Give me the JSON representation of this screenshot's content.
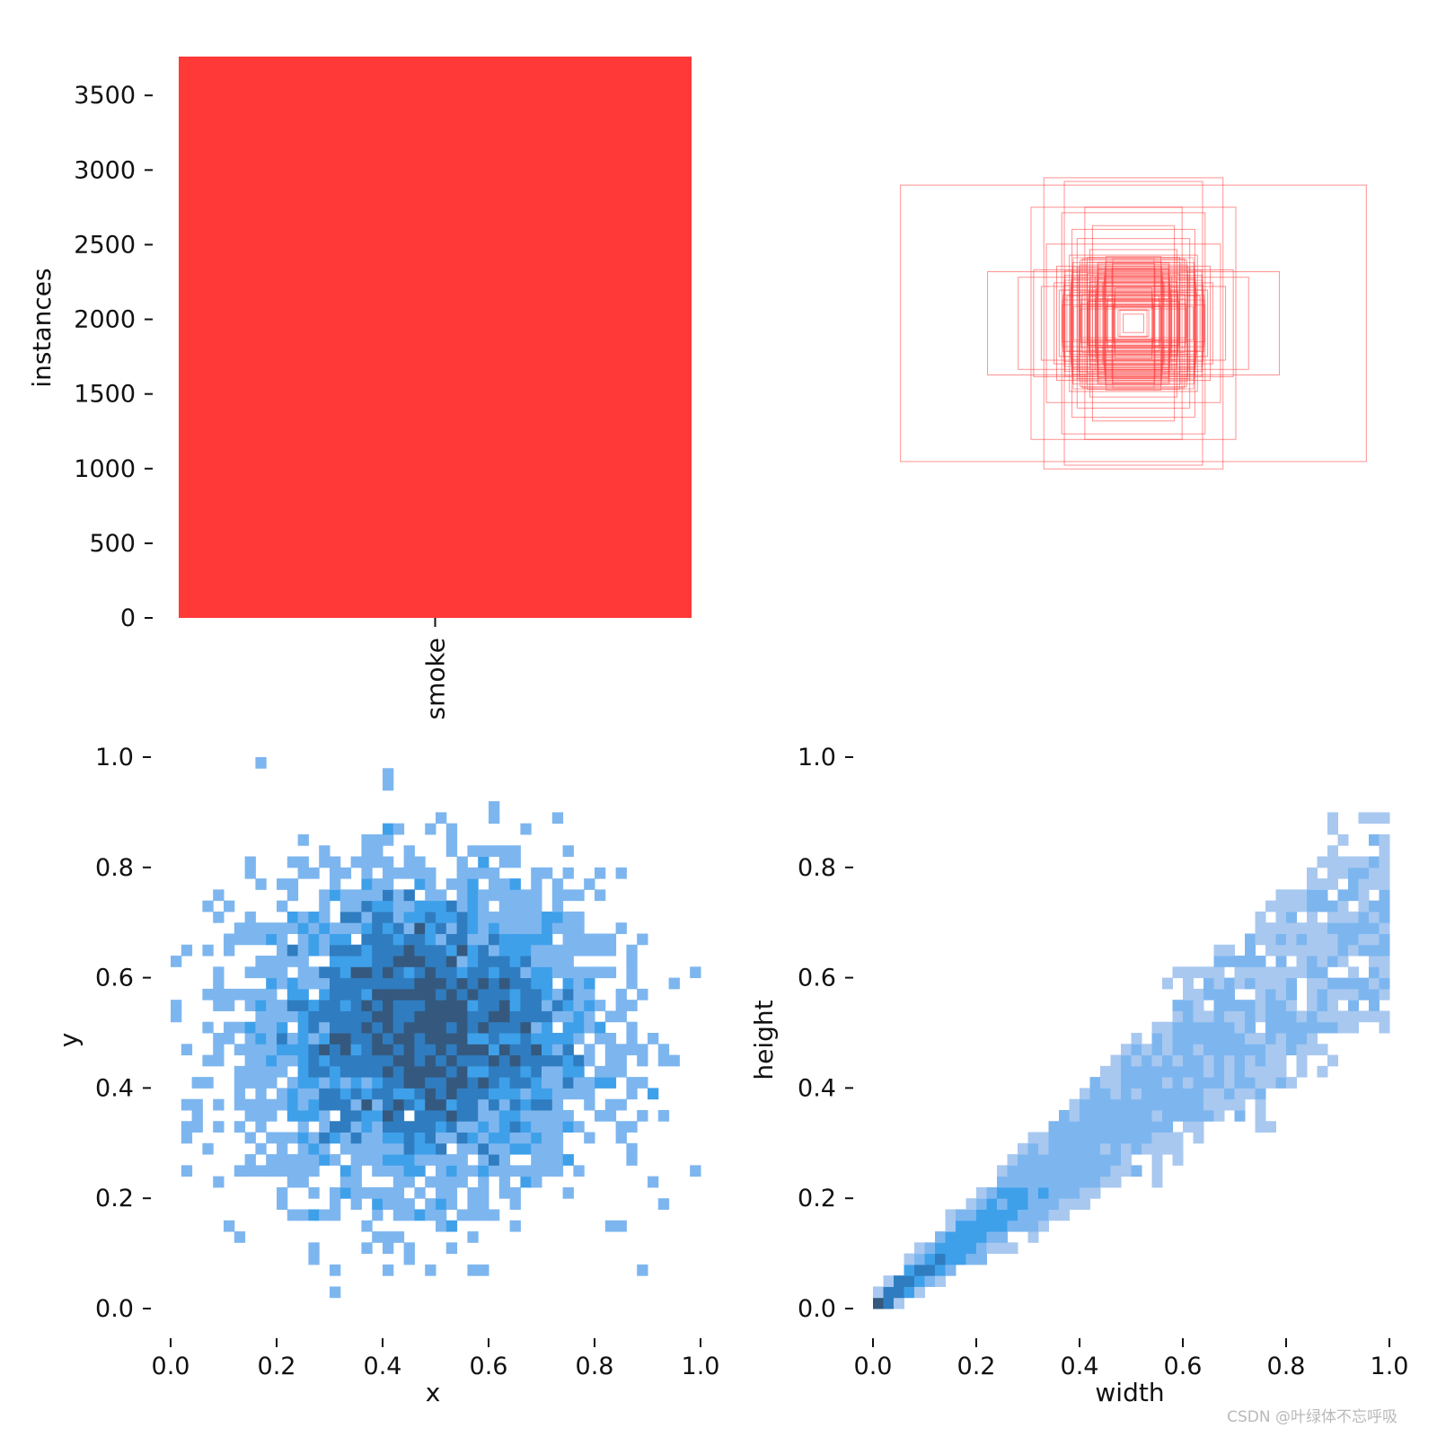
{
  "colors": {
    "bar": "#ff3838",
    "box": "#ff3838",
    "hist_levels": [
      "#a8c8f0",
      "#7db6ef",
      "#3fa0ea",
      "#2f7dc0",
      "#35597e"
    ]
  },
  "watermark": "CSDN @叶绿体不忘呼吸",
  "chart_data": [
    {
      "id": "class-count",
      "type": "bar",
      "categories": [
        "smoke"
      ],
      "values": [
        3760
      ],
      "ylabel": "instances",
      "ylim": [
        0,
        3760
      ],
      "yticks": [
        0,
        500,
        1000,
        1500,
        2000,
        2500,
        3000,
        3500
      ]
    },
    {
      "id": "box-overlay",
      "type": "boxes",
      "description_axes": "normalized box sizes centered at 0.5,0.5",
      "boxes": [
        {
          "w": 0.91,
          "h": 0.75
        },
        {
          "w": 0.35,
          "h": 0.79
        },
        {
          "w": 0.27,
          "h": 0.77
        },
        {
          "w": 0.57,
          "h": 0.28
        },
        {
          "w": 0.4,
          "h": 0.63
        },
        {
          "w": 0.19,
          "h": 0.63
        },
        {
          "w": 0.45,
          "h": 0.25
        },
        {
          "w": 0.34,
          "h": 0.43
        },
        {
          "w": 0.28,
          "h": 0.6
        },
        {
          "w": 0.22,
          "h": 0.46
        },
        {
          "w": 0.16,
          "h": 0.53
        },
        {
          "w": 0.36,
          "h": 0.2
        },
        {
          "w": 0.3,
          "h": 0.31
        },
        {
          "w": 0.25,
          "h": 0.37
        },
        {
          "w": 0.2,
          "h": 0.35
        },
        {
          "w": 0.14,
          "h": 0.33
        },
        {
          "w": 0.29,
          "h": 0.18
        },
        {
          "w": 0.24,
          "h": 0.24
        },
        {
          "w": 0.18,
          "h": 0.27
        },
        {
          "w": 0.12,
          "h": 0.22
        },
        {
          "w": 0.26,
          "h": 0.15
        },
        {
          "w": 0.21,
          "h": 0.17
        },
        {
          "w": 0.16,
          "h": 0.2
        },
        {
          "w": 0.1,
          "h": 0.15
        },
        {
          "w": 0.18,
          "h": 0.12
        },
        {
          "w": 0.13,
          "h": 0.13
        },
        {
          "w": 0.08,
          "h": 0.1
        },
        {
          "w": 0.11,
          "h": 0.09
        },
        {
          "w": 0.06,
          "h": 0.07
        },
        {
          "w": 0.04,
          "h": 0.05
        },
        {
          "w": 0.22,
          "h": 0.3
        },
        {
          "w": 0.17,
          "h": 0.4
        },
        {
          "w": 0.31,
          "h": 0.22
        },
        {
          "w": 0.24,
          "h": 0.51
        },
        {
          "w": 0.39,
          "h": 0.29
        },
        {
          "w": 0.15,
          "h": 0.25
        }
      ]
    },
    {
      "id": "xy-hist",
      "type": "heatmap",
      "xlabel": "x",
      "ylabel": "y",
      "xlim": [
        0,
        1
      ],
      "ylim": [
        0,
        1
      ],
      "xticks": [
        "0.0",
        "0.2",
        "0.4",
        "0.6",
        "0.8",
        "1.0"
      ],
      "yticks": [
        "0.0",
        "0.2",
        "0.4",
        "0.6",
        "0.8",
        "1.0"
      ],
      "bins": 50,
      "distribution": {
        "mean_x": 0.48,
        "mean_y": 0.5,
        "sd_x": 0.16,
        "sd_y": 0.14
      },
      "sample_count": 3760
    },
    {
      "id": "wh-hist",
      "type": "heatmap",
      "xlabel": "width",
      "ylabel": "height",
      "xlim": [
        0,
        1
      ],
      "ylim": [
        0,
        1
      ],
      "xticks": [
        "0.0",
        "0.2",
        "0.4",
        "0.6",
        "0.8",
        "1.0"
      ],
      "yticks": [
        "0.0",
        "0.2",
        "0.4",
        "0.6",
        "0.8",
        "1.0"
      ],
      "bins": 50,
      "distribution": {
        "mode_w": 0.04,
        "mode_h": 0.03,
        "spread": "skewed toward small boxes, correlated"
      },
      "sample_count": 3760
    }
  ]
}
